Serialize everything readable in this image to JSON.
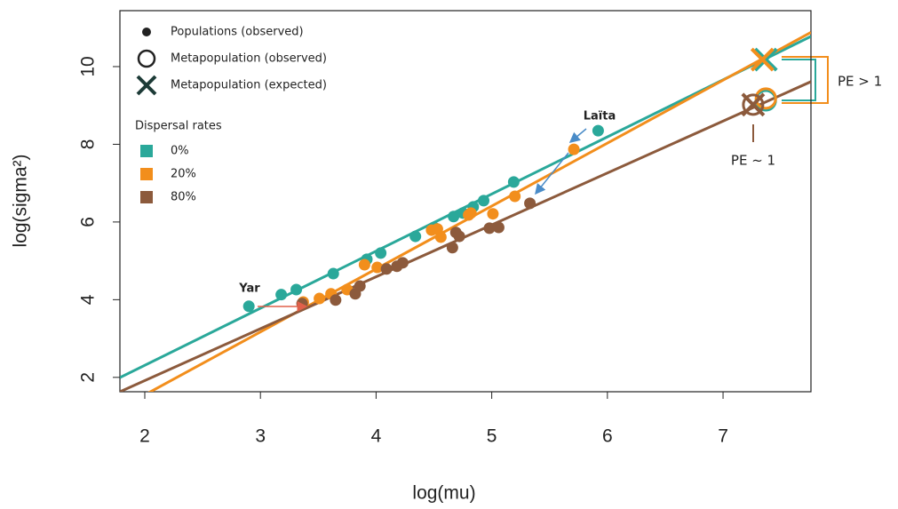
{
  "chart_data": {
    "type": "scatter",
    "x_label": "log(mu)",
    "y_label": "log(sigma²)",
    "xlim": [
      1.785,
      7.76
    ],
    "ylim": [
      1.63,
      11.44
    ],
    "xticks": [
      2,
      3,
      4,
      5,
      6,
      7
    ],
    "yticks": [
      2,
      4,
      6,
      8,
      10
    ],
    "legend": {
      "items": [
        "Populations (observed)",
        "Metapopulation (observed)",
        "Metapopulation (expected)"
      ],
      "title": "Dispersal rates"
    },
    "series": [
      {
        "name": "0%",
        "color": "#2aa89a",
        "x": [
          2.9,
          3.18,
          3.31,
          3.63,
          3.92,
          4.04,
          4.34,
          4.5,
          4.67,
          4.75,
          4.84,
          4.93,
          5.19,
          5.92
        ],
        "y": [
          3.83,
          4.13,
          4.26,
          4.67,
          5.04,
          5.2,
          5.63,
          5.86,
          6.14,
          6.23,
          6.39,
          6.55,
          7.03,
          8.35
        ],
        "meta_observed": {
          "x": 7.37,
          "y": 9.13
        },
        "meta_expected": {
          "x": 7.37,
          "y": 10.18
        },
        "fit": {
          "intercept": -0.63,
          "slope": 1.47
        }
      },
      {
        "name": "20%",
        "color": "#f28e1c",
        "x": [
          3.37,
          3.51,
          3.61,
          3.75,
          3.9,
          4.01,
          4.48,
          4.53,
          4.56,
          4.8,
          4.82,
          5.01,
          5.2,
          5.71
        ],
        "y": [
          3.94,
          4.03,
          4.15,
          4.26,
          4.9,
          4.83,
          5.79,
          5.82,
          5.61,
          6.18,
          6.23,
          6.21,
          6.66,
          7.87
        ],
        "meta_observed": {
          "x": 7.37,
          "y": 9.18
        },
        "meta_expected": {
          "x": 7.34,
          "y": 10.18
        },
        "fit": {
          "intercept": -1.69,
          "slope": 1.62
        }
      },
      {
        "name": "80%",
        "color": "#8c5a3c",
        "x": [
          3.36,
          3.65,
          3.82,
          3.86,
          4.09,
          4.18,
          4.23,
          4.66,
          4.69,
          4.72,
          4.98,
          5.06,
          5.33
        ],
        "y": [
          3.9,
          3.99,
          4.15,
          4.35,
          4.79,
          4.86,
          4.95,
          5.34,
          5.73,
          5.63,
          5.84,
          5.86,
          6.48
        ],
        "meta_observed": {
          "x": 7.26,
          "y": 9.02
        },
        "meta_expected": {
          "x": 7.26,
          "y": 9.02
        },
        "fit": {
          "intercept": -0.755,
          "slope": 1.336
        }
      }
    ],
    "annotations": [
      "Yar",
      "Laïta",
      "PE > 1",
      "PE ~ 1"
    ]
  }
}
